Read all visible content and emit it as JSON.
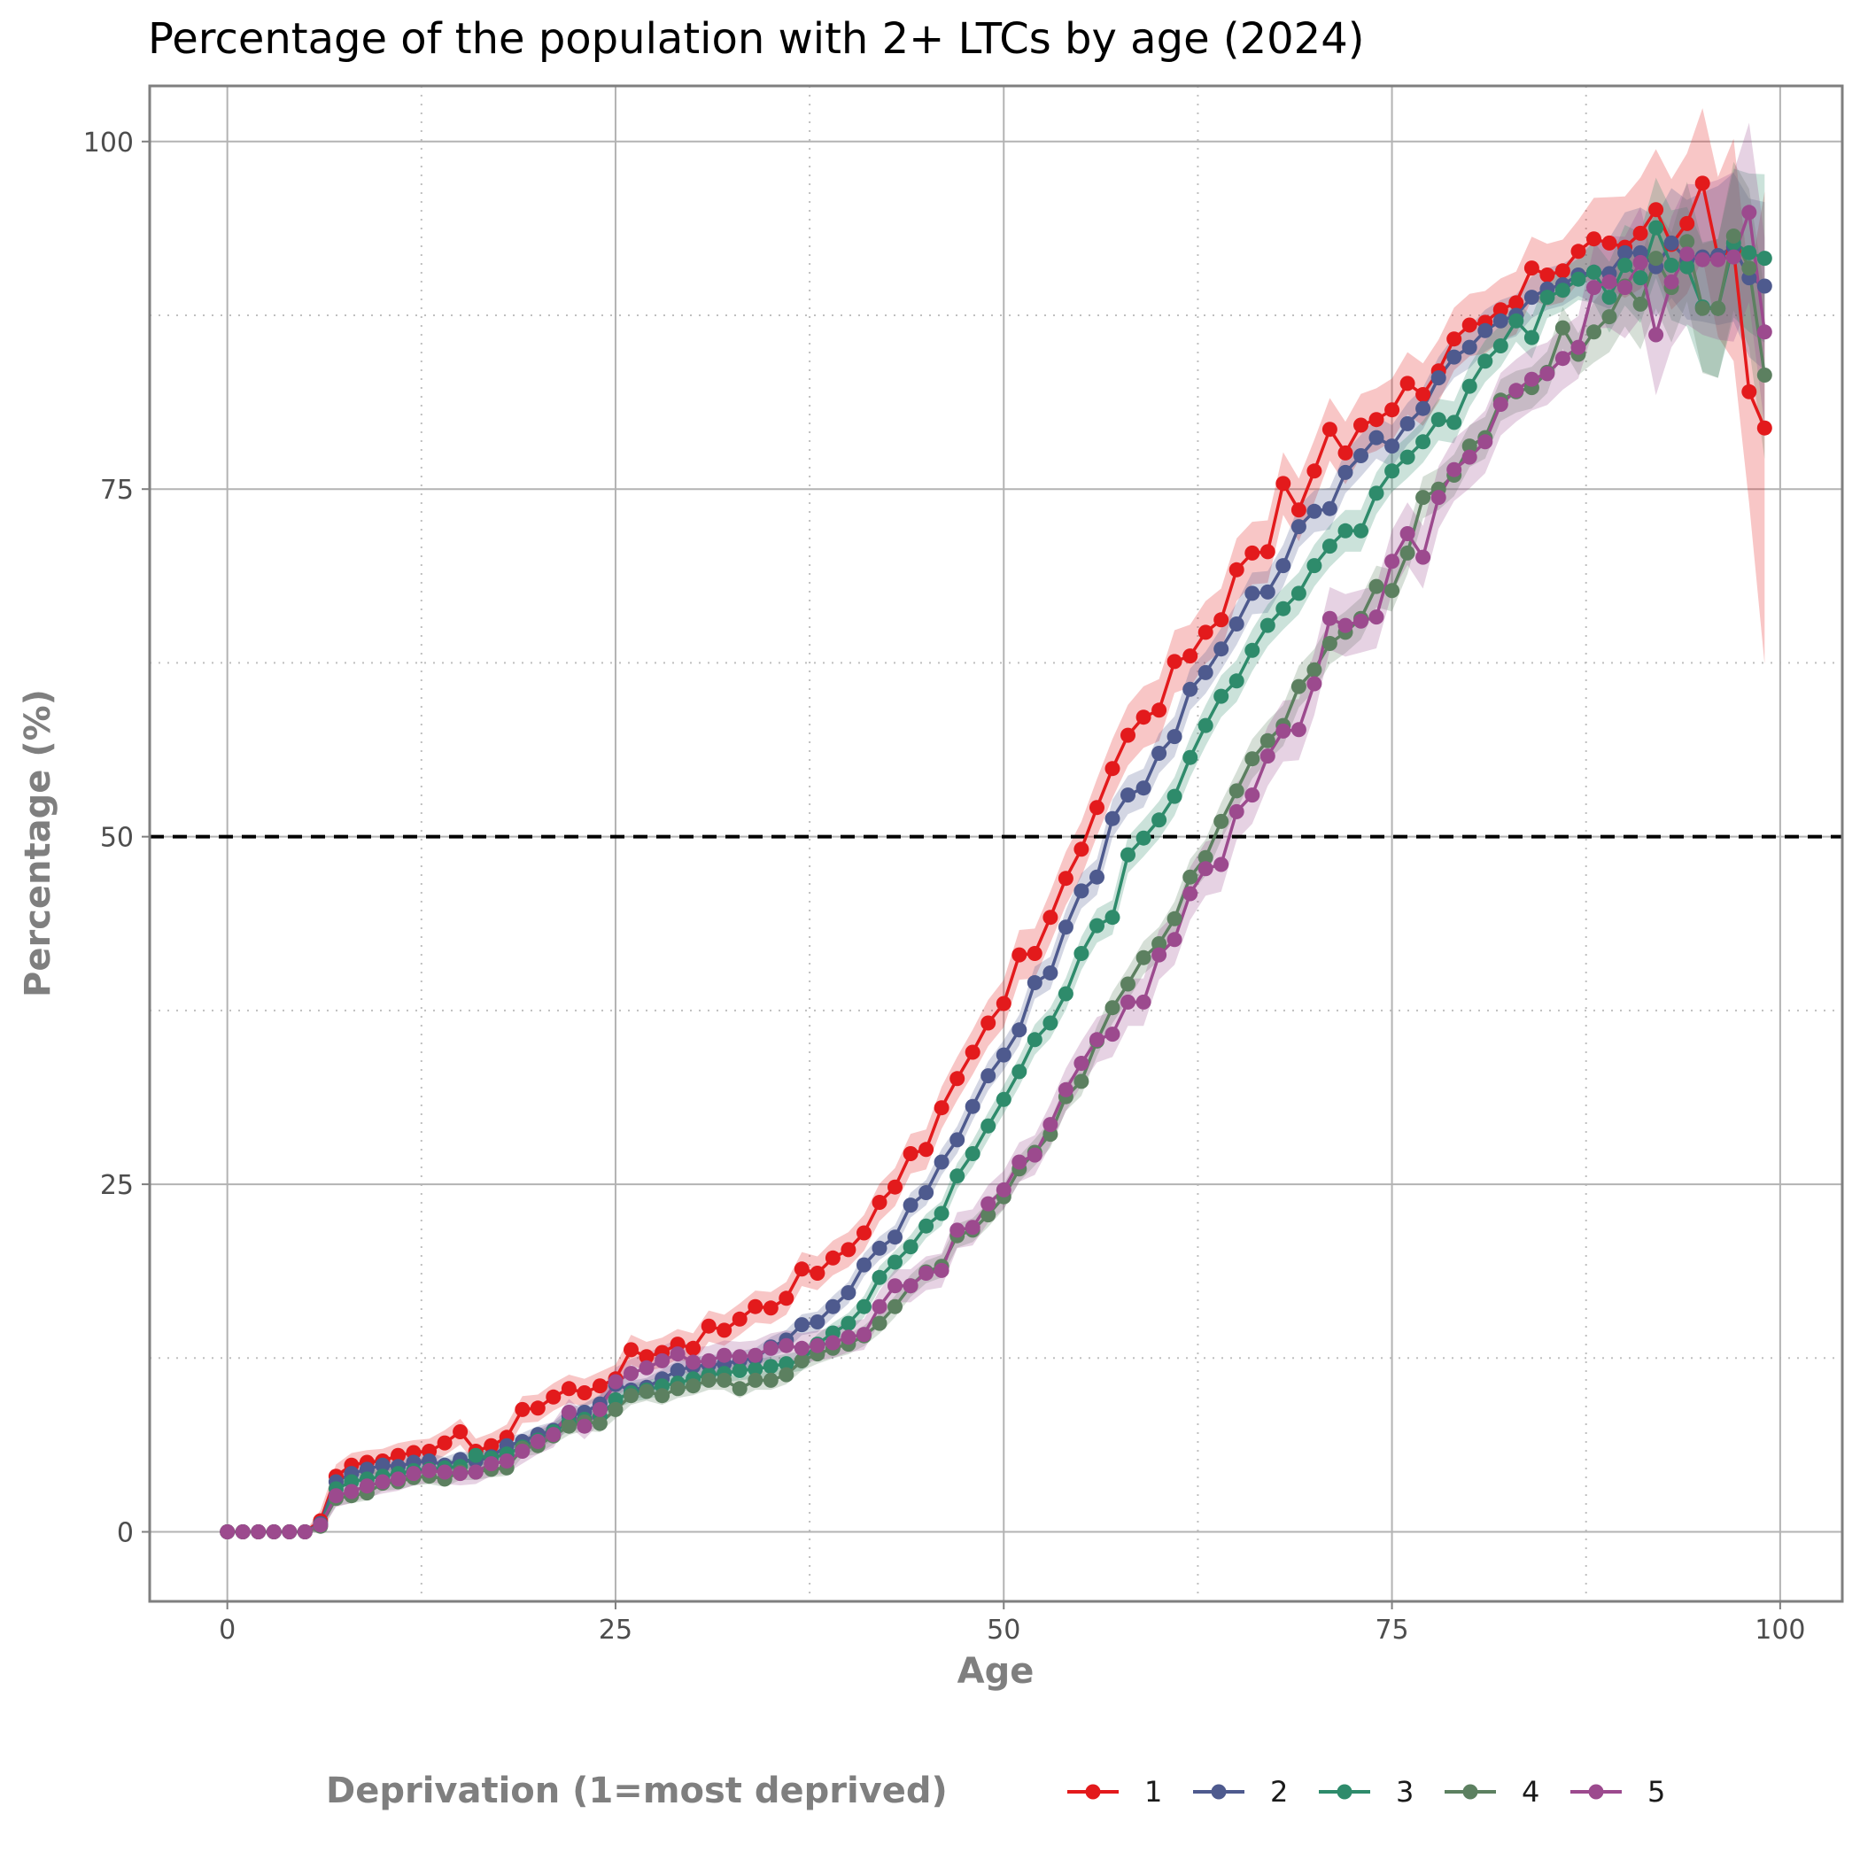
{
  "chart_data": {
    "type": "line",
    "title": "Percentage of the population with 2+ LTCs by age (2024)",
    "xlabel": "Age",
    "ylabel": "Percentage (%)",
    "xlim": [
      -5,
      104
    ],
    "ylim": [
      -5,
      104
    ],
    "xticks": [
      "0",
      "25",
      "50",
      "75",
      "100"
    ],
    "yticks": [
      "0",
      "25",
      "50",
      "75",
      "100"
    ],
    "grid": true,
    "legend_position": "bottom",
    "legend_title": "Deprivation (1=most deprived)",
    "reference_line": {
      "y": 50,
      "style": "dashed",
      "color": "#000000"
    },
    "colors": [
      "#e31a1c",
      "#4e5a8e",
      "#2e8b6b",
      "#5c8060",
      "#9c4a8e"
    ],
    "x": [
      0,
      1,
      2,
      3,
      4,
      5,
      6,
      7,
      8,
      9,
      10,
      11,
      12,
      13,
      14,
      15,
      16,
      17,
      18,
      19,
      20,
      21,
      22,
      23,
      24,
      25,
      26,
      27,
      28,
      29,
      30,
      31,
      32,
      33,
      34,
      35,
      36,
      37,
      38,
      39,
      40,
      41,
      42,
      43,
      44,
      45,
      46,
      47,
      48,
      49,
      50,
      51,
      52,
      53,
      54,
      55,
      56,
      57,
      58,
      59,
      60,
      61,
      62,
      63,
      64,
      65,
      66,
      67,
      68,
      69,
      70,
      71,
      72,
      73,
      74,
      75,
      76,
      77,
      78,
      79,
      80,
      81,
      82,
      83,
      84,
      85,
      86,
      87,
      88,
      89,
      90,
      91,
      92,
      93,
      94,
      95,
      96,
      97,
      98,
      99
    ],
    "series": [
      {
        "name": "1",
        "ci": 1.5,
        "values": [
          0,
          0,
          0,
          0,
          0,
          0,
          0.8,
          4.0,
          4.8,
          5.0,
          5.1,
          5.5,
          5.7,
          5.8,
          6.4,
          7.2,
          5.8,
          6.2,
          6.8,
          8.8,
          8.9,
          9.7,
          10.3,
          10.0,
          10.5,
          11.0,
          13.1,
          12.6,
          12.9,
          13.5,
          13.2,
          14.8,
          14.5,
          15.3,
          16.2,
          16.1,
          16.8,
          18.9,
          18.6,
          19.7,
          20.3,
          21.5,
          23.7,
          24.8,
          27.2,
          27.5,
          30.5,
          32.6,
          34.5,
          36.6,
          38.0,
          41.5,
          41.6,
          44.2,
          47.0,
          49.1,
          52.1,
          54.9,
          57.3,
          58.6,
          59.1,
          62.6,
          63.0,
          64.7,
          65.6,
          69.2,
          70.4,
          70.5,
          75.4,
          73.5,
          76.3,
          79.3,
          77.6,
          79.6,
          80.0,
          80.7,
          82.6,
          81.8,
          83.5,
          85.8,
          86.8,
          87.0,
          87.9,
          88.4,
          90.9,
          90.4,
          90.7,
          92.1,
          93.0,
          92.7,
          92.4,
          93.4,
          95.1,
          92.6,
          94.1,
          97.0,
          91.7,
          92.2,
          82.0,
          79.4
        ]
      },
      {
        "name": "2",
        "ci": 1.0,
        "values": [
          0,
          0,
          0,
          0,
          0,
          0,
          0.6,
          3.6,
          4.2,
          4.5,
          4.8,
          4.7,
          5.0,
          5.1,
          4.8,
          5.2,
          5.1,
          5.4,
          6.2,
          6.5,
          7.0,
          7.3,
          8.3,
          8.6,
          9.2,
          10.6,
          10.2,
          10.4,
          11.0,
          11.6,
          11.9,
          12.0,
          12.1,
          12.3,
          12.5,
          13.3,
          13.8,
          14.9,
          15.1,
          16.2,
          17.2,
          19.2,
          20.4,
          21.2,
          23.5,
          24.4,
          26.6,
          28.2,
          30.6,
          32.8,
          34.3,
          36.1,
          39.5,
          40.2,
          43.5,
          46.1,
          47.1,
          51.3,
          53.0,
          53.5,
          56.0,
          57.2,
          60.6,
          61.8,
          63.5,
          65.3,
          67.5,
          67.6,
          69.5,
          72.3,
          73.4,
          73.6,
          76.2,
          77.4,
          78.7,
          78.1,
          79.7,
          80.8,
          83.0,
          84.5,
          85.2,
          86.4,
          87.1,
          87.5,
          88.8,
          89.4,
          89.7,
          90.4,
          90.6,
          90.5,
          92.0,
          92.0,
          91.0,
          92.7,
          91.5,
          91.7,
          91.8,
          92.4,
          90.2,
          89.6
        ]
      },
      {
        "name": "3",
        "ci": 1.0,
        "values": [
          0,
          0,
          0,
          0,
          0,
          0,
          0.5,
          3.1,
          3.6,
          3.8,
          4.0,
          4.2,
          4.4,
          4.5,
          4.6,
          4.7,
          5.5,
          5.3,
          5.6,
          6.1,
          6.6,
          7.2,
          7.9,
          8.1,
          8.3,
          9.5,
          10.0,
          10.2,
          10.5,
          10.7,
          11.0,
          11.3,
          11.4,
          11.6,
          11.7,
          11.9,
          12.1,
          12.3,
          13.5,
          14.3,
          15.0,
          16.2,
          18.3,
          19.4,
          20.5,
          22.0,
          22.9,
          25.6,
          27.2,
          29.2,
          31.1,
          33.1,
          35.4,
          36.6,
          38.7,
          41.6,
          43.6,
          44.2,
          48.7,
          49.9,
          51.2,
          52.9,
          55.7,
          58.0,
          60.1,
          61.2,
          63.4,
          65.2,
          66.4,
          67.5,
          69.5,
          70.9,
          72.0,
          72.0,
          74.7,
          76.3,
          77.3,
          78.4,
          80.0,
          79.8,
          82.4,
          84.2,
          85.3,
          87.1,
          85.9,
          88.8,
          89.3,
          90.1,
          90.6,
          88.8,
          91.1,
          90.2,
          93.8,
          91.1,
          91.0,
          88.1,
          88.0,
          92.7,
          92.0,
          91.6
        ]
      },
      {
        "name": "4",
        "ci": 1.0,
        "values": [
          0,
          0,
          0,
          0,
          0,
          0,
          0.4,
          2.4,
          2.6,
          2.8,
          3.5,
          3.6,
          3.9,
          4.0,
          3.8,
          4.3,
          4.3,
          4.5,
          4.6,
          6.0,
          6.2,
          6.9,
          7.6,
          7.9,
          7.8,
          8.8,
          9.8,
          10.1,
          9.8,
          10.3,
          10.5,
          10.9,
          10.9,
          10.3,
          10.9,
          10.9,
          11.3,
          12.3,
          12.8,
          13.2,
          13.5,
          14.1,
          15.0,
          16.2,
          17.7,
          18.7,
          19.1,
          21.3,
          21.7,
          22.8,
          24.1,
          26.1,
          27.3,
          28.6,
          31.3,
          32.4,
          35.3,
          37.7,
          39.4,
          41.3,
          42.3,
          44.1,
          47.1,
          48.5,
          51.1,
          53.3,
          55.6,
          56.9,
          58.0,
          60.8,
          62.0,
          63.9,
          64.7,
          65.7,
          68.0,
          67.7,
          70.4,
          74.4,
          75.0,
          76.0,
          78.1,
          78.7,
          81.4,
          82.0,
          82.3,
          83.4,
          86.6,
          84.7,
          86.3,
          87.4,
          89.6,
          88.3,
          91.6,
          89.5,
          92.8,
          88.0,
          88.0,
          93.2,
          90.9,
          83.2
        ]
      },
      {
        "name": "5",
        "ci": 1.5,
        "values": [
          0,
          0,
          0,
          0,
          0,
          0,
          0.5,
          2.6,
          2.9,
          3.3,
          3.6,
          3.8,
          4.2,
          4.4,
          4.3,
          4.2,
          4.3,
          4.9,
          5.1,
          5.8,
          6.5,
          7.0,
          8.6,
          7.6,
          8.8,
          10.8,
          11.4,
          11.8,
          12.3,
          12.8,
          12.2,
          12.3,
          12.7,
          12.6,
          12.7,
          13.2,
          13.4,
          13.2,
          13.4,
          13.6,
          14.0,
          14.2,
          16.2,
          17.7,
          17.7,
          18.6,
          18.8,
          21.7,
          21.9,
          23.6,
          24.6,
          26.6,
          27.1,
          29.3,
          31.8,
          33.7,
          35.4,
          35.8,
          38.1,
          38.1,
          41.5,
          42.6,
          45.9,
          47.7,
          48.0,
          51.8,
          53.0,
          55.8,
          57.6,
          57.7,
          61.0,
          65.7,
          65.2,
          65.5,
          65.8,
          69.8,
          71.8,
          70.1,
          74.4,
          76.4,
          77.3,
          78.4,
          81.1,
          82.1,
          82.9,
          83.3,
          84.4,
          85.2,
          89.5,
          89.9,
          89.5,
          91.3,
          86.1,
          89.9,
          91.9,
          91.5,
          91.5,
          91.7,
          94.9,
          86.3
        ]
      }
    ]
  }
}
